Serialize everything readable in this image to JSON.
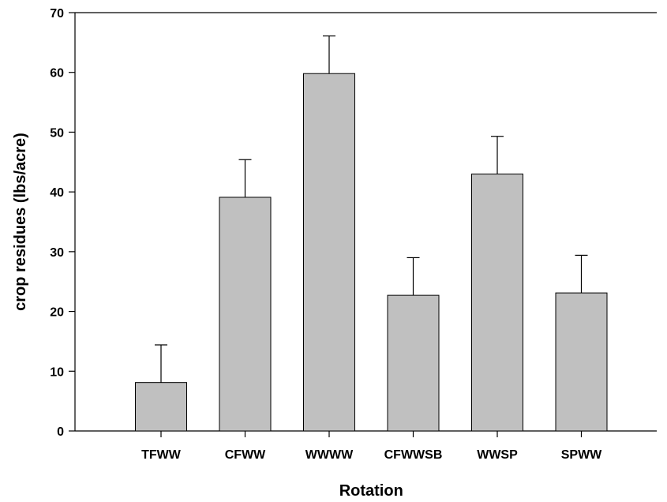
{
  "chart_data": {
    "type": "bar",
    "title": "",
    "xlabel": "Rotation",
    "ylabel": "crop residues (lbs/acre)",
    "ylim": [
      0,
      70
    ],
    "yticks": [
      0,
      10,
      20,
      30,
      40,
      50,
      60,
      70
    ],
    "categories": [
      "TFWW",
      "CFWW",
      "WWWW",
      "CFWWSB",
      "WWSP",
      "SPWW"
    ],
    "values": [
      8.1,
      39.1,
      59.8,
      22.7,
      43.0,
      23.1
    ],
    "error_upper": [
      6.3,
      6.3,
      6.3,
      6.3,
      6.3,
      6.3
    ],
    "grid": false,
    "legend": "none",
    "colors": {
      "bar_fill": "#c0c0c0",
      "bar_stroke": "#000000",
      "axis": "#000000"
    }
  }
}
